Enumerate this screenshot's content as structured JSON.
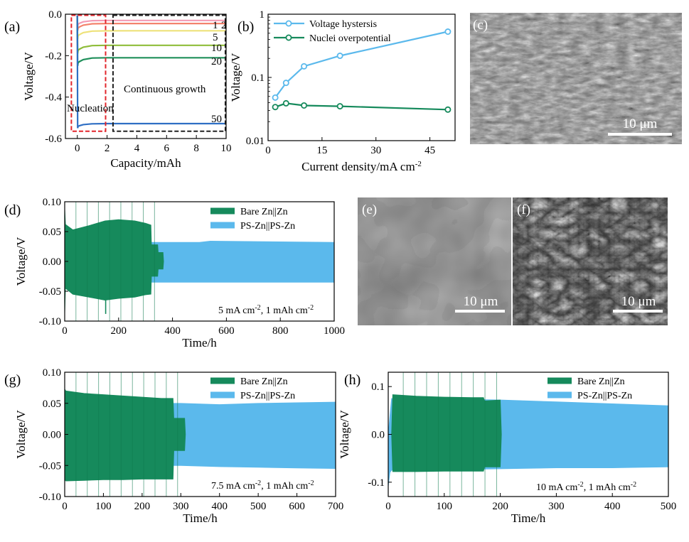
{
  "colors": {
    "blue": "#5bb9ec",
    "green": "#168a5c",
    "dark_green": "#0e7a4e",
    "red_box": "#e2252b",
    "black_box": "#222222",
    "curve_1": "#f39ab4",
    "curve_2": "#f4826c",
    "curve_5": "#eee27a",
    "curve_10": "#8fbd3a",
    "curve_20": "#1f8f5a",
    "curve_50": "#2f6fc4"
  },
  "panels": {
    "a": "(a)",
    "b": "(b)",
    "c": "(c)",
    "d": "(d)",
    "e": "(e)",
    "f": "(f)",
    "g": "(g)",
    "h": "(h)"
  },
  "images": {
    "c": {
      "scale_label": "10 μm",
      "texture": "rough-granular-surface"
    },
    "e": {
      "scale_label": "10 μm",
      "texture": "flat-plate-flakes"
    },
    "f": {
      "scale_label": "10 μm",
      "texture": "porous-fibrous-dendrites"
    }
  },
  "chart_data": [
    {
      "id": "a",
      "type": "line",
      "xlabel": "Capacity/mAh",
      "ylabel": "Voltage/V",
      "xlim": [
        -0.8,
        10
      ],
      "ylim": [
        -0.6,
        0
      ],
      "xticks": [
        0,
        2,
        4,
        6,
        8,
        10
      ],
      "xtick_labels": [
        "0",
        "2",
        "4",
        "6",
        "8",
        "10"
      ],
      "yticks": [
        -0.6,
        -0.4,
        -0.2,
        0.0
      ],
      "ytick_labels": [
        "-0.6",
        "-0.4",
        "-0.2",
        "0.0"
      ],
      "series": [
        {
          "name": "1",
          "color_key": "curve_1",
          "plateau": -0.03,
          "nucleation_min": -0.06,
          "label_shown": "1"
        },
        {
          "name": "2",
          "color_key": "curve_2",
          "plateau": -0.045,
          "nucleation_min": -0.08,
          "label_shown": "2"
        },
        {
          "name": "5",
          "color_key": "curve_5",
          "plateau": -0.08,
          "nucleation_min": -0.12,
          "label_shown": "5"
        },
        {
          "name": "10",
          "color_key": "curve_10",
          "plateau": -0.15,
          "nucleation_min": -0.19,
          "label_shown": "10"
        },
        {
          "name": "20",
          "color_key": "curve_20",
          "plateau": -0.21,
          "nucleation_min": -0.25,
          "label_shown": "20"
        },
        {
          "name": "50",
          "color_key": "curve_50",
          "plateau": -0.528,
          "nucleation_min": -0.55,
          "label_shown": "50"
        }
      ],
      "annotations": {
        "nucleation": "Nucleation",
        "growth": "Continuous growth",
        "nucleation_box": {
          "x": [
            -0.4,
            1.9
          ],
          "y": [
            -0.565,
            -0.005
          ]
        },
        "growth_box": {
          "x": [
            2.4,
            9.95
          ],
          "y": [
            -0.565,
            -0.005
          ]
        }
      }
    },
    {
      "id": "b",
      "type": "line",
      "xlabel": "Current density/mA cm",
      "xlabel_sup": "-2",
      "ylabel": "Voltage/V",
      "xlim": [
        0,
        52
      ],
      "ylim": [
        0.01,
        1
      ],
      "yscale": "log",
      "xticks": [
        0,
        15,
        30,
        45
      ],
      "xtick_labels": [
        "0",
        "15",
        "30",
        "45"
      ],
      "yticks": [
        0.01,
        0.1,
        1
      ],
      "ytick_labels": [
        "0.01",
        "0.1",
        "1"
      ],
      "legend_placement": "top-left",
      "series": [
        {
          "name": "Voltage hystersis",
          "color_key": "blue",
          "x": [
            2,
            5,
            10,
            20,
            50
          ],
          "y": [
            0.048,
            0.082,
            0.15,
            0.22,
            0.53
          ]
        },
        {
          "name": "Nuclei overpotential",
          "color_key": "green",
          "x": [
            2,
            5,
            10,
            20,
            50
          ],
          "y": [
            0.034,
            0.039,
            0.036,
            0.035,
            0.031
          ]
        }
      ]
    },
    {
      "id": "d",
      "type": "area",
      "xlabel": "Time/h",
      "ylabel": "Voltage/V",
      "xlim": [
        0,
        1000
      ],
      "ylim": [
        -0.1,
        0.1
      ],
      "xticks": [
        0,
        200,
        400,
        600,
        800,
        1000
      ],
      "xtick_labels": [
        "0",
        "200",
        "400",
        "600",
        "800",
        "1000"
      ],
      "yticks": [
        -0.1,
        -0.05,
        0,
        0.05,
        0.1
      ],
      "ytick_labels": [
        "-0.10",
        "-0.05",
        "0.00",
        "0.05",
        "0.10"
      ],
      "legend_placement": "top-right",
      "condition": "5 mA cm",
      "condition_sup": "-2",
      "condition_tail": ", 1 mAh cm",
      "condition_tail_sup": "-2",
      "series": [
        {
          "name": "PS-Zn||PS-Zn",
          "color_key": "blue",
          "x": [
            0,
            5,
            40,
            200,
            500,
            540,
            1000
          ],
          "upper": [
            0.06,
            0.032,
            0.032,
            0.032,
            0.032,
            0.034,
            0.032
          ],
          "lower": [
            -0.06,
            -0.035,
            -0.035,
            -0.035,
            -0.035,
            -0.035,
            -0.035
          ]
        },
        {
          "name": "Bare Zn||Zn",
          "color_key": "green",
          "x": [
            0,
            3,
            30,
            90,
            150,
            200,
            260,
            300,
            320,
            322,
            345,
            347,
            365,
            367
          ],
          "upper": [
            0.09,
            0.062,
            0.053,
            0.06,
            0.068,
            0.07,
            0.068,
            0.064,
            0.061,
            0.028,
            0.028,
            0.015,
            0.015,
            0.0
          ],
          "lower": [
            -0.09,
            -0.045,
            -0.055,
            -0.06,
            -0.065,
            -0.062,
            -0.06,
            -0.056,
            -0.055,
            -0.025,
            -0.025,
            -0.013,
            -0.013,
            0.0
          ],
          "spikes": [
            {
              "x": 152,
              "y": -0.088
            }
          ]
        }
      ]
    },
    {
      "id": "g",
      "type": "area",
      "xlabel": "Time/h",
      "ylabel": "Voltage/V",
      "xlim": [
        0,
        700
      ],
      "ylim": [
        -0.1,
        0.1
      ],
      "xticks": [
        0,
        100,
        200,
        300,
        400,
        500,
        600,
        700
      ],
      "xtick_labels": [
        "0",
        "100",
        "200",
        "300",
        "400",
        "500",
        "600",
        "700"
      ],
      "yticks": [
        -0.1,
        -0.05,
        0,
        0.05,
        0.1
      ],
      "ytick_labels": [
        "-0.10",
        "-0.05",
        "0.00",
        "0.05",
        "0.10"
      ],
      "legend_placement": "top-right",
      "condition": "7.5 mA cm",
      "condition_sup": "-2",
      "condition_tail": ", 1 mAh cm",
      "condition_tail_sup": "-2",
      "series": [
        {
          "name": "PS-Zn||PS-Zn",
          "color_key": "blue",
          "x": [
            0,
            300,
            400,
            500,
            600,
            700
          ],
          "upper": [
            0.05,
            0.05,
            0.048,
            0.05,
            0.051,
            0.052
          ],
          "lower": [
            -0.05,
            -0.05,
            -0.052,
            -0.053,
            -0.054,
            -0.055
          ]
        },
        {
          "name": "Bare Zn||Zn",
          "color_key": "green",
          "x": [
            0,
            3,
            50,
            100,
            150,
            200,
            250,
            280,
            282,
            310,
            312
          ],
          "upper": [
            0.073,
            0.07,
            0.066,
            0.064,
            0.062,
            0.06,
            0.058,
            0.058,
            0.026,
            0.026,
            0.0
          ],
          "lower": [
            -0.073,
            -0.075,
            -0.074,
            -0.073,
            -0.073,
            -0.072,
            -0.072,
            -0.072,
            -0.026,
            -0.026,
            0.0
          ]
        }
      ]
    },
    {
      "id": "h",
      "type": "area",
      "xlabel": "Time/h",
      "ylabel": "Voltage/V",
      "xlim": [
        0,
        500
      ],
      "ylim": [
        -0.13,
        0.13
      ],
      "xticks": [
        0,
        100,
        200,
        300,
        400,
        500
      ],
      "xtick_labels": [
        "0",
        "100",
        "200",
        "300",
        "400",
        "500"
      ],
      "yticks": [
        -0.1,
        0.0,
        0.1
      ],
      "ytick_labels": [
        "-0.1",
        "0.0",
        "0.1"
      ],
      "legend_placement": "top-right",
      "condition": "10 mA cm",
      "condition_sup": "-2",
      "condition_tail": ", 1 mAh cm",
      "condition_tail_sup": "-2",
      "series": [
        {
          "name": "PS-Zn||PS-Zn",
          "color_key": "blue",
          "x": [
            0,
            3,
            6,
            100,
            200,
            300,
            400,
            500
          ],
          "upper": [
            0.0,
            0.04,
            0.075,
            0.074,
            0.072,
            0.068,
            0.064,
            0.06
          ],
          "lower": [
            -0.11,
            -0.08,
            -0.075,
            -0.074,
            -0.072,
            -0.07,
            -0.07,
            -0.068
          ]
        },
        {
          "name": "Bare Zn||Zn",
          "color_key": "green",
          "x": [
            6,
            8,
            50,
            100,
            150,
            170,
            172,
            200,
            202
          ],
          "upper": [
            0.0,
            0.083,
            0.08,
            0.078,
            0.077,
            0.077,
            0.07,
            0.072,
            0.0
          ],
          "lower": [
            0.0,
            -0.078,
            -0.078,
            -0.077,
            -0.077,
            -0.077,
            -0.068,
            -0.068,
            0.0
          ]
        }
      ]
    }
  ]
}
